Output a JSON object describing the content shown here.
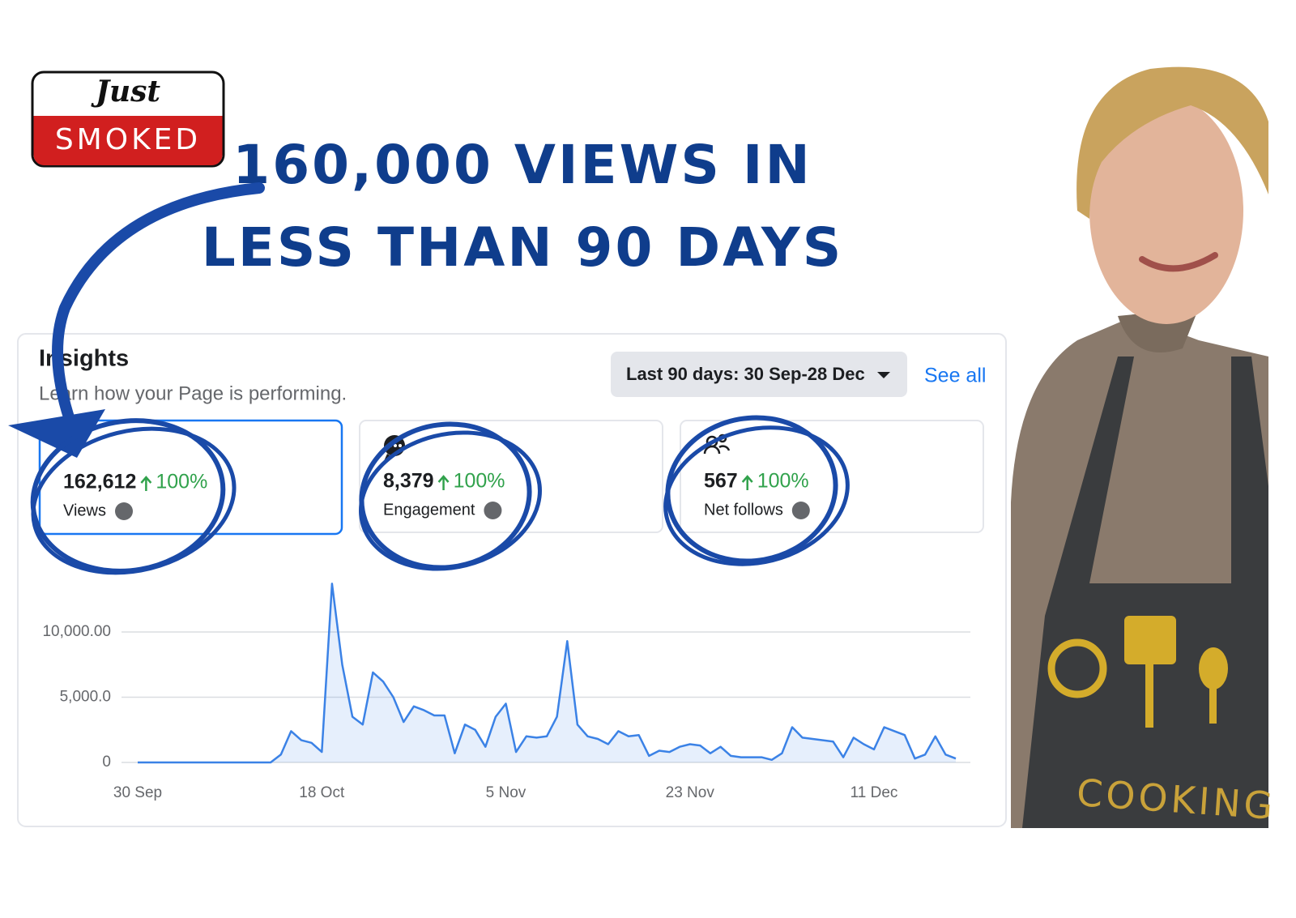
{
  "logo": {
    "top": "Just",
    "bottom": "SMOKED"
  },
  "headline": {
    "line1": "160,000 VIEWS IN",
    "line2": "LESS THAN 90 DAYS"
  },
  "insights": {
    "title": "Insights",
    "subtitle": "Learn how your Page is performing.",
    "date_range": "Last 90 days: 30 Sep-28 Dec",
    "see_all": "See all",
    "cards": [
      {
        "value": "162,612",
        "change": "100%",
        "label": "Views"
      },
      {
        "value": "8,379",
        "change": "100%",
        "label": "Engagement"
      },
      {
        "value": "567",
        "change": "100%",
        "label": "Net follows"
      }
    ]
  },
  "photo": {
    "apron_text": "COOKING"
  },
  "chart_data": {
    "type": "line",
    "categories": [
      "30 Sep",
      null,
      null,
      null,
      null,
      null,
      null,
      null,
      null,
      null,
      null,
      null,
      null,
      null,
      null,
      null,
      null,
      null,
      "18 Oct",
      null,
      null,
      null,
      null,
      null,
      null,
      null,
      null,
      null,
      null,
      null,
      null,
      null,
      null,
      null,
      null,
      null,
      "5 Nov",
      null,
      null,
      null,
      null,
      null,
      null,
      null,
      null,
      null,
      null,
      null,
      null,
      null,
      null,
      null,
      null,
      null,
      "23 Nov",
      null,
      null,
      null,
      null,
      null,
      null,
      null,
      null,
      null,
      null,
      null,
      null,
      null,
      null,
      null,
      null,
      null,
      "11 Dec",
      null,
      null,
      null,
      null,
      null,
      null,
      null,
      null
    ],
    "values": [
      0,
      0,
      0,
      0,
      0,
      0,
      0,
      0,
      0,
      0,
      0,
      0,
      0,
      0,
      600,
      2400,
      1700,
      1500,
      800,
      13700,
      7500,
      3500,
      2900,
      6900,
      6200,
      5000,
      3100,
      4300,
      4000,
      3600,
      3600,
      700,
      2900,
      2500,
      1200,
      3500,
      4500,
      800,
      2000,
      1900,
      2000,
      3500,
      9300,
      2900,
      2000,
      1800,
      1400,
      2400,
      2000,
      2100,
      500,
      900,
      800,
      1200,
      1400,
      1300,
      700,
      1200,
      500,
      400,
      400,
      400,
      200,
      700,
      2700,
      1900,
      1800,
      1700,
      1600,
      400,
      1900,
      1400,
      1000,
      2700,
      2400,
      2100,
      300,
      600,
      2000,
      600,
      300
    ],
    "color": "#3b82e6",
    "ylim": [
      0,
      13750
    ],
    "yticks": [
      0,
      {
        "value": 5000,
        "label": "5,000.0"
      },
      {
        "value": 10000,
        "label": "10,000.00"
      }
    ],
    "grid": true
  }
}
